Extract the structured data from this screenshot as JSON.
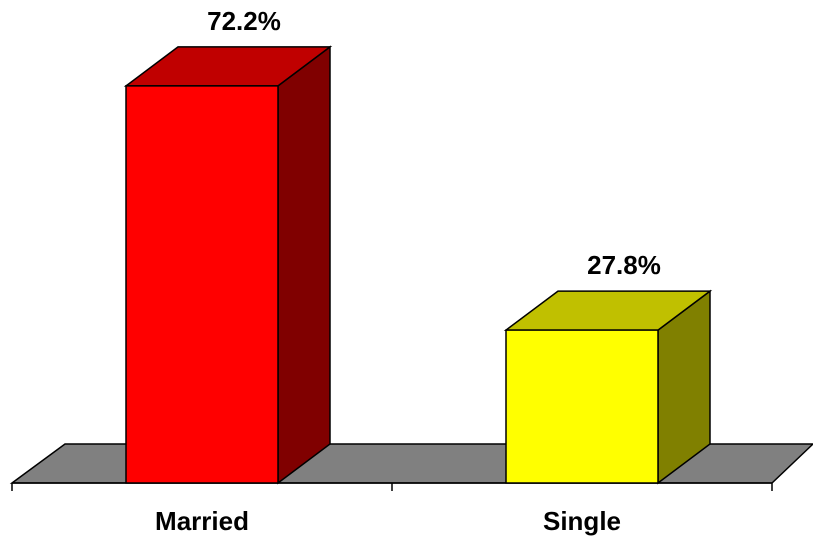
{
  "chart_data": {
    "type": "bar3d",
    "categories": [
      "Married",
      "Single"
    ],
    "values": [
      72.2,
      27.8
    ],
    "value_labels": [
      "72.2%",
      "27.8%"
    ],
    "colors": [
      "#ff0000",
      "#ffff00"
    ],
    "top_colors": [
      "#c00000",
      "#c0c000"
    ],
    "side_colors": [
      "#800000",
      "#808000"
    ],
    "floor_color": "#808080"
  }
}
